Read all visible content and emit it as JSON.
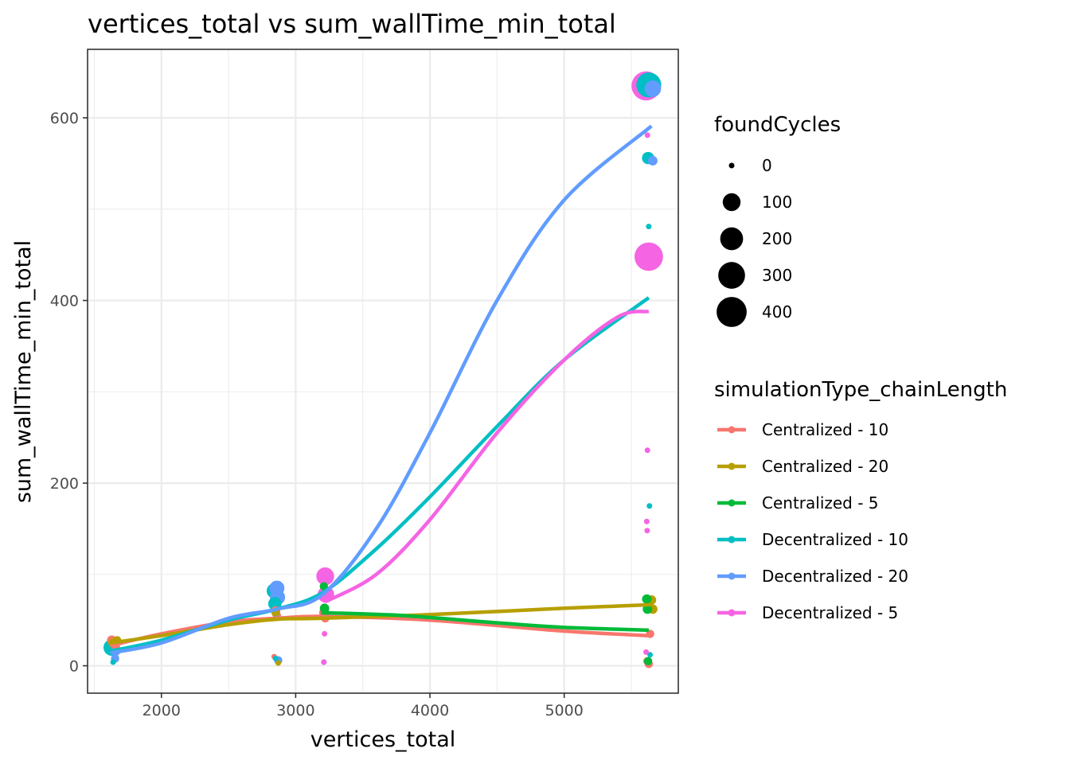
{
  "chart_data": {
    "type": "scatter",
    "title": "vertices_total  vs  sum_wallTime_min_total",
    "xlabel": "vertices_total",
    "ylabel": "sum_wallTime_min_total",
    "xlim": [
      1450,
      5850
    ],
    "ylim": [
      -30,
      675
    ],
    "x_ticks": [
      2000,
      3000,
      4000,
      5000
    ],
    "y_ticks": [
      0,
      200,
      400,
      600
    ],
    "grid": true,
    "theme": "bw",
    "size_legend": {
      "title": "foundCycles",
      "values": [
        0,
        100,
        200,
        300,
        400
      ]
    },
    "color_legend": {
      "title": "simulationType_chainLength",
      "placement": "right"
    },
    "series": [
      {
        "name": "Centralized - 10",
        "color": "#F8766D",
        "points": [
          {
            "x": 1630,
            "y": 28,
            "size": 10
          },
          {
            "x": 1660,
            "y": 22,
            "size": 5
          },
          {
            "x": 2840,
            "y": 10,
            "size": 0
          },
          {
            "x": 2850,
            "y": 60,
            "size": 10
          },
          {
            "x": 2860,
            "y": 55,
            "size": 5
          },
          {
            "x": 3210,
            "y": 58,
            "size": 10
          },
          {
            "x": 3220,
            "y": 52,
            "size": 5
          },
          {
            "x": 5620,
            "y": 5,
            "size": 5
          },
          {
            "x": 5630,
            "y": 2,
            "size": 5
          },
          {
            "x": 5640,
            "y": 35,
            "size": 5
          }
        ],
        "smooth": [
          [
            1620,
            22
          ],
          [
            2000,
            35
          ],
          [
            2500,
            48
          ],
          [
            2860,
            52
          ],
          [
            3200,
            54
          ],
          [
            4000,
            50
          ],
          [
            5000,
            38
          ],
          [
            5630,
            33
          ]
        ]
      },
      {
        "name": "Centralized - 20",
        "color": "#B79F00",
        "points": [
          {
            "x": 1640,
            "y": 25,
            "size": 10
          },
          {
            "x": 1670,
            "y": 28,
            "size": 5
          },
          {
            "x": 2850,
            "y": 58,
            "size": 5
          },
          {
            "x": 2870,
            "y": 3,
            "size": 0
          },
          {
            "x": 3220,
            "y": 55,
            "size": 5
          },
          {
            "x": 5650,
            "y": 72,
            "size": 10
          },
          {
            "x": 5660,
            "y": 62,
            "size": 10
          }
        ],
        "smooth": [
          [
            1620,
            25
          ],
          [
            2000,
            33
          ],
          [
            2500,
            45
          ],
          [
            2860,
            51
          ],
          [
            3200,
            52
          ],
          [
            4000,
            56
          ],
          [
            5000,
            63
          ],
          [
            5660,
            67
          ]
        ]
      },
      {
        "name": "Centralized - 5",
        "color": "#00BA38",
        "points": [
          {
            "x": 3210,
            "y": 87,
            "size": 5
          },
          {
            "x": 3215,
            "y": 63,
            "size": 10
          },
          {
            "x": 3220,
            "y": 58,
            "size": 5
          },
          {
            "x": 5615,
            "y": 73,
            "size": 10
          },
          {
            "x": 5620,
            "y": 62,
            "size": 10
          },
          {
            "x": 5625,
            "y": 5,
            "size": 5
          }
        ],
        "smooth": [
          [
            3220,
            58
          ],
          [
            3800,
            55
          ],
          [
            4500,
            47
          ],
          [
            5000,
            42
          ],
          [
            5630,
            39
          ]
        ]
      },
      {
        "name": "Decentralized - 10",
        "color": "#00BFC4",
        "points": [
          {
            "x": 1630,
            "y": 20,
            "size": 80
          },
          {
            "x": 1640,
            "y": 4,
            "size": 0
          },
          {
            "x": 2840,
            "y": 82,
            "size": 60
          },
          {
            "x": 2845,
            "y": 68,
            "size": 40
          },
          {
            "x": 2850,
            "y": 8,
            "size": 0
          },
          {
            "x": 3210,
            "y": 4,
            "size": 0
          },
          {
            "x": 5630,
            "y": 636,
            "size": 250
          },
          {
            "x": 5625,
            "y": 556,
            "size": 30
          },
          {
            "x": 5630,
            "y": 481,
            "size": 0
          },
          {
            "x": 5635,
            "y": 175,
            "size": 0
          },
          {
            "x": 5640,
            "y": 12,
            "size": 0
          }
        ],
        "smooth": [
          [
            1620,
            16
          ],
          [
            2000,
            28
          ],
          [
            2500,
            50
          ],
          [
            2860,
            62
          ],
          [
            3200,
            80
          ],
          [
            3600,
            128
          ],
          [
            4000,
            185
          ],
          [
            4500,
            262
          ],
          [
            5000,
            335
          ],
          [
            5630,
            403
          ]
        ]
      },
      {
        "name": "Decentralized - 20",
        "color": "#619CFF",
        "points": [
          {
            "x": 1660,
            "y": 16,
            "size": 10
          },
          {
            "x": 1655,
            "y": 8,
            "size": 5
          },
          {
            "x": 2860,
            "y": 85,
            "size": 60
          },
          {
            "x": 2865,
            "y": 75,
            "size": 60
          },
          {
            "x": 2860,
            "y": 52,
            "size": 0
          },
          {
            "x": 2870,
            "y": 6,
            "size": 5
          },
          {
            "x": 5660,
            "y": 632,
            "size": 80
          },
          {
            "x": 5660,
            "y": 553,
            "size": 10
          }
        ],
        "smooth": [
          [
            1620,
            14
          ],
          [
            2000,
            25
          ],
          [
            2500,
            52
          ],
          [
            2860,
            62
          ],
          [
            3200,
            78
          ],
          [
            3600,
            150
          ],
          [
            4000,
            255
          ],
          [
            4500,
            400
          ],
          [
            5000,
            510
          ],
          [
            5650,
            591
          ]
        ]
      },
      {
        "name": "Decentralized - 5",
        "color": "#F564E3",
        "points": [
          {
            "x": 3220,
            "y": 98,
            "size": 100
          },
          {
            "x": 3225,
            "y": 78,
            "size": 80
          },
          {
            "x": 3215,
            "y": 35,
            "size": 0
          },
          {
            "x": 3210,
            "y": 4,
            "size": 0
          },
          {
            "x": 5610,
            "y": 635,
            "size": 370
          },
          {
            "x": 5630,
            "y": 448,
            "size": 350
          },
          {
            "x": 5620,
            "y": 581,
            "size": 0
          },
          {
            "x": 5620,
            "y": 236,
            "size": 0
          },
          {
            "x": 5615,
            "y": 158,
            "size": 0
          },
          {
            "x": 5618,
            "y": 148,
            "size": 0
          },
          {
            "x": 5610,
            "y": 15,
            "size": 0
          }
        ],
        "smooth": [
          [
            3220,
            70
          ],
          [
            3600,
            100
          ],
          [
            4000,
            160
          ],
          [
            4500,
            255
          ],
          [
            5000,
            335
          ],
          [
            5400,
            382
          ],
          [
            5630,
            388
          ]
        ]
      }
    ]
  }
}
